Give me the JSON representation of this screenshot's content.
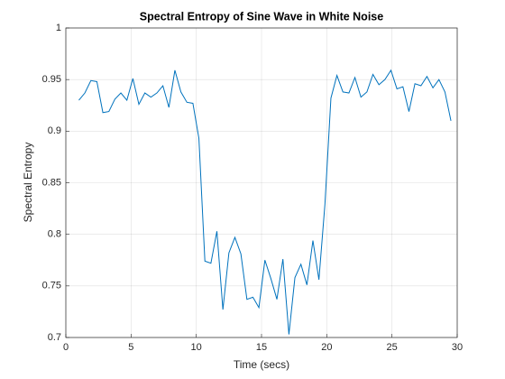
{
  "chart_data": {
    "type": "line",
    "title": "Spectral Entropy of Sine Wave in White Noise",
    "xlabel": "Time (secs)",
    "ylabel": "Spectral Entropy",
    "x": [
      1,
      1.46,
      1.92,
      2.38,
      2.84,
      3.3,
      3.76,
      4.22,
      4.68,
      5.14,
      5.6,
      6.06,
      6.52,
      6.98,
      7.44,
      7.9,
      8.36,
      8.82,
      9.28,
      9.74,
      10.2,
      10.66,
      11.12,
      11.58,
      12.04,
      12.5,
      12.96,
      13.42,
      13.88,
      14.34,
      14.8,
      15.26,
      15.72,
      16.18,
      16.64,
      17.1,
      17.56,
      18.02,
      18.48,
      18.94,
      19.4,
      19.86,
      20.32,
      20.78,
      21.24,
      21.7,
      22.16,
      22.62,
      23.08,
      23.54,
      24.0,
      24.46,
      24.92,
      25.38,
      25.84,
      26.3,
      26.76,
      27.22,
      27.68,
      28.14,
      28.6,
      29.06,
      29.52
    ],
    "series": [
      {
        "color": "#0072bd",
        "values": [
          0.93,
          0.937,
          0.949,
          0.948,
          0.918,
          0.919,
          0.931,
          0.937,
          0.93,
          0.951,
          0.926,
          0.937,
          0.933,
          0.937,
          0.944,
          0.923,
          0.959,
          0.938,
          0.928,
          0.927,
          0.893,
          0.774,
          0.772,
          0.803,
          0.727,
          0.782,
          0.797,
          0.781,
          0.737,
          0.739,
          0.729,
          0.775,
          0.757,
          0.737,
          0.776,
          0.703,
          0.758,
          0.771,
          0.751,
          0.794,
          0.756,
          0.829,
          0.932,
          0.954,
          0.938,
          0.937,
          0.952,
          0.933,
          0.938,
          0.955,
          0.945,
          0.95,
          0.959,
          0.941,
          0.943,
          0.919,
          0.946,
          0.944,
          0.953,
          0.942,
          0.95,
          0.938,
          0.91
        ]
      }
    ],
    "xlim": [
      0,
      30
    ],
    "xticks": [
      0,
      5,
      10,
      15,
      20,
      25,
      30
    ],
    "ylim": [
      0.7,
      1
    ],
    "yticks": [
      0.7,
      0.75,
      0.8,
      0.85,
      0.9,
      0.95,
      1
    ],
    "grid": true
  }
}
